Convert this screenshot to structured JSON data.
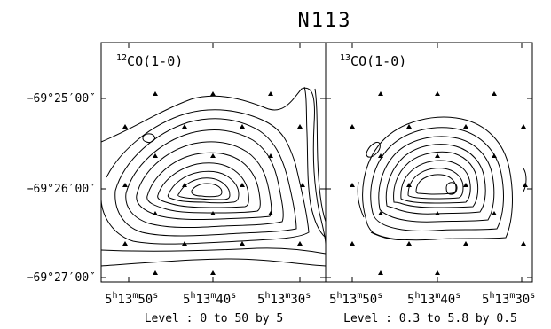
{
  "title": "N113",
  "panels": [
    {
      "label_super": "12",
      "label_text": "CO(1-0)",
      "level_caption": "Level : 0 to 50 by 5",
      "x_ticks": [
        {
          "h": "5",
          "m": "13",
          "s": "50"
        },
        {
          "h": "5",
          "m": "13",
          "s": "40"
        },
        {
          "h": "5",
          "m": "13",
          "s": "30"
        }
      ]
    },
    {
      "label_super": "13",
      "label_text": "CO(1-0)",
      "level_caption": "Level : 0.3 to 5.8 by 0.5",
      "x_ticks": [
        {
          "h": "5",
          "m": "13",
          "s": "50"
        },
        {
          "h": "5",
          "m": "13",
          "s": "40"
        },
        {
          "h": "5",
          "m": "13",
          "s": "30"
        }
      ]
    }
  ],
  "y_ticks": [
    "−69°25′00″",
    "−69°26′00″",
    "−69°27′00″"
  ],
  "unit_h": "h",
  "unit_m": "m",
  "unit_s": "s",
  "colors": {
    "ink": "#000000",
    "background": "#ffffff"
  }
}
